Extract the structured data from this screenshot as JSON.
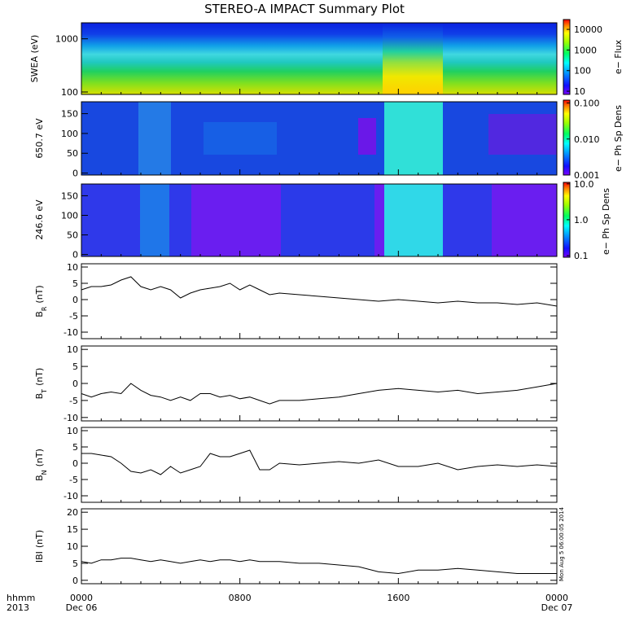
{
  "chart_data": {
    "title": "STEREO-A IMPACT Summary Plot",
    "time_axis": {
      "row_label_1": "hhmm",
      "row_label_2": "2013",
      "ticks": [
        {
          "hour": 0,
          "label": "0000",
          "date": "Dec 06"
        },
        {
          "hour": 8,
          "label": "0800",
          "date": ""
        },
        {
          "hour": 16,
          "label": "1600",
          "date": ""
        },
        {
          "hour": 24,
          "label": "0000",
          "date": "Dec 07"
        }
      ],
      "range_hours": [
        0,
        24
      ]
    },
    "side_stamp": "Mon Aug  5 06:00:05 2014",
    "spectrograms": [
      {
        "type": "heatmap",
        "ylabel": "SWEA (eV)",
        "yscale": "log",
        "ylim": [
          90,
          2000
        ],
        "yticks": [
          {
            "v": 100,
            "l": "100"
          },
          {
            "v": 1000,
            "l": "1000"
          }
        ],
        "colorbar_label": "e− Flux",
        "colorbar_ticks": [
          {
            "v": 10,
            "l": "10"
          },
          {
            "v": 100,
            "l": "100"
          },
          {
            "v": 1000,
            "l": "1000"
          },
          {
            "v": 10000,
            "l": "10000"
          }
        ],
        "colorbar_range": [
          7,
          30000
        ],
        "colorbar_scale": "log"
      },
      {
        "type": "heatmap",
        "ylabel": "650.7 eV",
        "yscale": "linear",
        "ylim": [
          -5,
          180
        ],
        "yticks": [
          {
            "v": 0,
            "l": "0"
          },
          {
            "v": 50,
            "l": "50"
          },
          {
            "v": 100,
            "l": "100"
          },
          {
            "v": 150,
            "l": "150"
          }
        ],
        "colorbar_label": "e− Ph Sp Dens",
        "colorbar_ticks": [
          {
            "v": 0.001,
            "l": "0.001"
          },
          {
            "v": 0.01,
            "l": "0.010"
          },
          {
            "v": 0.1,
            "l": "0.100"
          }
        ],
        "colorbar_range": [
          0.001,
          0.12
        ],
        "colorbar_scale": "log"
      },
      {
        "type": "heatmap",
        "ylabel": "246.6 eV",
        "yscale": "linear",
        "ylim": [
          -5,
          180
        ],
        "yticks": [
          {
            "v": 0,
            "l": "0"
          },
          {
            "v": 50,
            "l": "50"
          },
          {
            "v": 100,
            "l": "100"
          },
          {
            "v": 150,
            "l": "150"
          }
        ],
        "colorbar_label": "e− Ph Sp Dens",
        "colorbar_ticks": [
          {
            "v": 0.1,
            "l": "0.1"
          },
          {
            "v": 1,
            "l": "1.0"
          },
          {
            "v": 10,
            "l": "10.0"
          }
        ],
        "colorbar_range": [
          0.09,
          11
        ],
        "colorbar_scale": "log"
      }
    ],
    "line_panels": [
      {
        "type": "line",
        "ylabel": "B",
        "ysub": "R",
        "yunit": "(nT)",
        "ylim": [
          -12,
          11
        ],
        "yticks": [
          -10,
          -5,
          0,
          5,
          10
        ],
        "x": [
          0,
          0.5,
          1,
          1.5,
          2,
          2.5,
          3,
          3.5,
          4,
          4.5,
          5,
          5.5,
          6,
          6.5,
          7,
          7.5,
          8,
          8.5,
          9,
          9.5,
          10,
          11,
          12,
          13,
          14,
          15,
          16,
          17,
          18,
          19,
          20,
          21,
          22,
          23,
          24
        ],
        "y": [
          3,
          4,
          4,
          4.5,
          6,
          7,
          4,
          3,
          4,
          3,
          0.5,
          2,
          3,
          3.5,
          4,
          5,
          3,
          4.5,
          3,
          1.5,
          2,
          1.5,
          1,
          0.5,
          0,
          -0.5,
          0,
          -0.5,
          -1,
          -0.5,
          -1,
          -1,
          -1.5,
          -1,
          -2
        ]
      },
      {
        "type": "line",
        "ylabel": "B",
        "ysub": "T",
        "yunit": "(nT)",
        "ylim": [
          -11,
          11
        ],
        "yticks": [
          -10,
          -5,
          0,
          5,
          10
        ],
        "x": [
          0,
          0.5,
          1,
          1.5,
          2,
          2.5,
          3,
          3.5,
          4,
          4.5,
          5,
          5.5,
          6,
          6.5,
          7,
          7.5,
          8,
          8.5,
          9,
          9.5,
          10,
          11,
          12,
          13,
          14,
          15,
          16,
          17,
          18,
          19,
          20,
          21,
          22,
          23,
          24
        ],
        "y": [
          -3,
          -4,
          -3,
          -2.5,
          -3,
          0,
          -2,
          -3.5,
          -4,
          -5,
          -4,
          -5,
          -3,
          -3,
          -4,
          -3.5,
          -4.5,
          -4,
          -5,
          -6,
          -5,
          -5,
          -4.5,
          -4,
          -3,
          -2,
          -1.5,
          -2,
          -2.5,
          -2,
          -3,
          -2.5,
          -2,
          -1,
          0
        ]
      },
      {
        "type": "line",
        "ylabel": "B",
        "ysub": "N",
        "yunit": "(nT)",
        "ylim": [
          -12,
          11
        ],
        "yticks": [
          -10,
          -5,
          0,
          5,
          10
        ],
        "x": [
          0,
          0.5,
          1,
          1.5,
          2,
          2.5,
          3,
          3.5,
          4,
          4.5,
          5,
          5.5,
          6,
          6.5,
          7,
          7.5,
          8,
          8.5,
          9,
          9.5,
          10,
          11,
          12,
          13,
          14,
          15,
          16,
          17,
          18,
          19,
          20,
          21,
          22,
          23,
          24
        ],
        "y": [
          3,
          3,
          2.5,
          2,
          0,
          -2.5,
          -3,
          -2,
          -3.5,
          -1,
          -3,
          -2,
          -1,
          3,
          2,
          2,
          3,
          4,
          -2,
          -2,
          0,
          -0.5,
          0,
          0.5,
          0,
          1,
          -1,
          -1,
          0,
          -2,
          -1,
          -0.5,
          -1,
          -0.5,
          -1
        ]
      },
      {
        "type": "line",
        "ylabel": "IBI",
        "ysub": "",
        "yunit": "(nT)",
        "ylim": [
          -1,
          21
        ],
        "yticks": [
          0,
          5,
          10,
          15,
          20
        ],
        "x": [
          0,
          0.5,
          1,
          1.5,
          2,
          2.5,
          3,
          3.5,
          4,
          4.5,
          5,
          5.5,
          6,
          6.5,
          7,
          7.5,
          8,
          8.5,
          9,
          9.5,
          10,
          11,
          12,
          13,
          14,
          15,
          16,
          17,
          18,
          19,
          20,
          21,
          22,
          23,
          24
        ],
        "y": [
          5.5,
          5,
          6,
          6,
          6.5,
          6.5,
          6,
          5.5,
          6,
          5.5,
          5,
          5.5,
          6,
          5.5,
          6,
          6,
          5.5,
          6,
          5.5,
          5.5,
          5.5,
          5,
          5,
          4.5,
          4,
          2.5,
          2,
          3,
          3,
          3.5,
          3,
          2.5,
          2,
          2,
          2
        ]
      }
    ],
    "colors": {
      "trace": "#000000",
      "frame": "#000000",
      "background": "#ffffff"
    }
  }
}
